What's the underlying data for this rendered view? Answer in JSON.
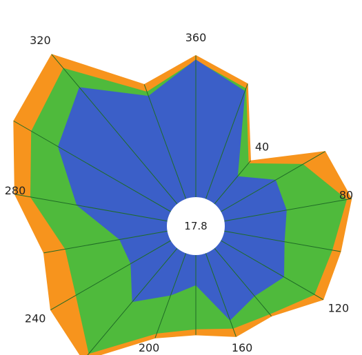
{
  "chart_data": {
    "type": "area",
    "subtype": "polar-stacked",
    "center_value": "17.8",
    "angle_unit": "degrees",
    "angles": [
      0,
      20,
      40,
      60,
      80,
      100,
      120,
      140,
      160,
      180,
      200,
      220,
      240,
      260,
      280,
      300,
      320,
      340
    ],
    "angle_tick_labels": [
      {
        "angle": 360,
        "text": "360"
      },
      {
        "angle": 40,
        "text": "40"
      },
      {
        "angle": 80,
        "text": "80"
      },
      {
        "angle": 120,
        "text": "120"
      },
      {
        "angle": 160,
        "text": "160"
      },
      {
        "angle": 200,
        "text": "200"
      },
      {
        "angle": 240,
        "text": "240"
      },
      {
        "angle": 280,
        "text": "280"
      },
      {
        "angle": 320,
        "text": "320"
      }
    ],
    "radial_max": 300,
    "series": [
      {
        "color": "#f7941d",
        "values": [
          232,
          206,
          116,
          203,
          215,
          200,
          200,
          160,
          160,
          148,
          162,
          238,
          228,
          210,
          250,
          286,
          305,
          205
        ]
      },
      {
        "color": "#4fba3c",
        "values": [
          225,
          199,
          111,
          168,
          208,
          188,
          186,
          156,
          148,
          140,
          155,
          226,
          188,
          180,
          228,
          258,
          280,
          194
        ]
      },
      {
        "color": "#3b5fc8",
        "values": [
          226,
          195,
          88,
          125,
          125,
          122,
          138,
          124,
          136,
          80,
          100,
          134,
          102,
          105,
          164,
          216,
          246,
          188
        ]
      }
    ],
    "spoke_color": "#1f6b26",
    "center_fill": "#ffffff"
  }
}
